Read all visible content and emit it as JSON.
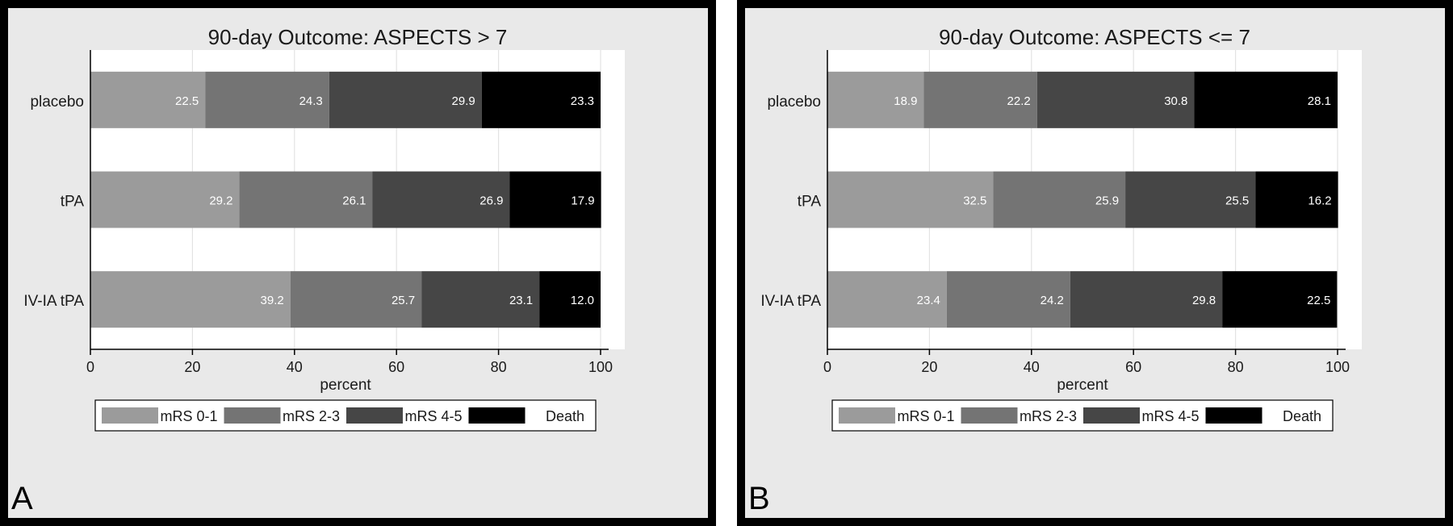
{
  "chart_data": [
    {
      "type": "bar",
      "orientation": "horizontal",
      "stacked": true,
      "panel_letter": "A",
      "title": "90-day Outcome:  ASPECTS > 7",
      "xlabel": "percent",
      "ylabel": "",
      "xlim": [
        0,
        100
      ],
      "xticks": [
        "0",
        "20",
        "40",
        "60",
        "80",
        "100"
      ],
      "grid": true,
      "legend_position": "bottom",
      "categories": [
        "placebo",
        "tPA",
        "IV-IA tPA"
      ],
      "series": [
        {
          "name": "mRS 0-1",
          "color": "#9b9b9b",
          "values": [
            22.5,
            29.2,
            39.2
          ],
          "labels": [
            "22.5",
            "29.2",
            "39.2"
          ]
        },
        {
          "name": "mRS 2-3",
          "color": "#747474",
          "values": [
            24.3,
            26.1,
            25.7
          ],
          "labels": [
            "24.3",
            "26.1",
            "25.7"
          ]
        },
        {
          "name": "mRS 4-5",
          "color": "#464646",
          "values": [
            29.9,
            26.9,
            23.1
          ],
          "labels": [
            "29.9",
            "26.9",
            "23.1"
          ]
        },
        {
          "name": "Death",
          "color": "#000000",
          "values": [
            23.3,
            17.9,
            12.0
          ],
          "labels": [
            "23.3",
            "17.9",
            "12.0"
          ]
        }
      ]
    },
    {
      "type": "bar",
      "orientation": "horizontal",
      "stacked": true,
      "panel_letter": "B",
      "title": "90-day Outcome:  ASPECTS <= 7",
      "xlabel": "percent",
      "ylabel": "",
      "xlim": [
        0,
        100
      ],
      "xticks": [
        "0",
        "20",
        "40",
        "60",
        "80",
        "100"
      ],
      "grid": true,
      "legend_position": "bottom",
      "categories": [
        "placebo",
        "tPA",
        "IV-IA tPA"
      ],
      "series": [
        {
          "name": "mRS 0-1",
          "color": "#9b9b9b",
          "values": [
            18.9,
            32.5,
            23.4
          ],
          "labels": [
            "18.9",
            "32.5",
            "23.4"
          ]
        },
        {
          "name": "mRS 2-3",
          "color": "#747474",
          "values": [
            22.2,
            25.9,
            24.2
          ],
          "labels": [
            "22.2",
            "25.9",
            "24.2"
          ]
        },
        {
          "name": "mRS 4-5",
          "color": "#464646",
          "values": [
            30.8,
            25.5,
            29.8
          ],
          "labels": [
            "30.8",
            "25.5",
            "29.8"
          ]
        },
        {
          "name": "Death",
          "color": "#000000",
          "values": [
            28.1,
            16.2,
            22.5
          ],
          "labels": [
            "28.1",
            "16.2",
            "22.5"
          ]
        }
      ]
    }
  ]
}
